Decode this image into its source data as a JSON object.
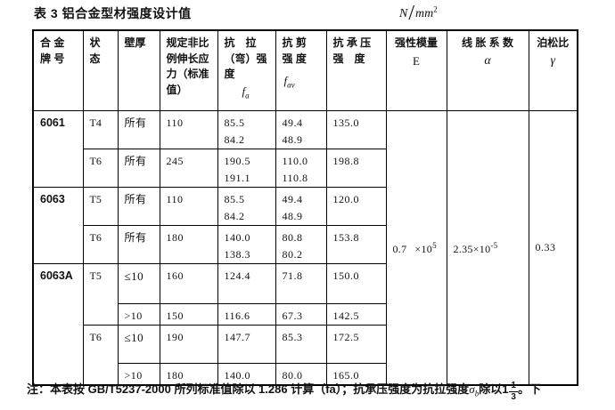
{
  "page": {
    "title": "表 3 铝合金型材强度设计值",
    "unit": {
      "numerator": "N",
      "denominator": "mm",
      "exponent": "2"
    }
  },
  "table": {
    "columns": [
      {
        "id": "alloy",
        "lines": [
          "合 金",
          "牌 号"
        ]
      },
      {
        "id": "temper",
        "lines": [
          "状",
          "态"
        ]
      },
      {
        "id": "thickness",
        "lines": [
          "壁厚"
        ]
      },
      {
        "id": "yield_strength",
        "lines": [
          "规定非比",
          "例伸长应",
          "力（标准",
          "值）"
        ]
      },
      {
        "id": "tensile",
        "lines": [
          "抗　拉",
          "（弯）强",
          "度"
        ],
        "symbol": "f",
        "symbol_sub": "a"
      },
      {
        "id": "shear",
        "lines": [
          "抗 剪",
          "强 度"
        ],
        "symbol": "f",
        "symbol_sub": "av"
      },
      {
        "id": "bearing",
        "lines": [
          "抗 承 压",
          "强　度"
        ]
      },
      {
        "id": "modulus",
        "lines": [
          "强性模量"
        ],
        "symbol": "E"
      },
      {
        "id": "expansion",
        "lines": [
          "线 胀 系 数"
        ],
        "symbol": "α"
      },
      {
        "id": "poisson",
        "lines": [
          "泊松比"
        ],
        "symbol": "γ"
      }
    ],
    "rows": [
      {
        "alloy": "6061",
        "alloy_span": 2,
        "temper": "T4",
        "thickness": "所有",
        "yield_strength": "110",
        "tensile": [
          "85.5",
          "84.2"
        ],
        "shear": [
          "49.4",
          "48.9"
        ],
        "bearing": "135.0"
      },
      {
        "temper": "T6",
        "thickness": "所有",
        "yield_strength": "245",
        "tensile": [
          "190.5",
          "191.1"
        ],
        "shear": [
          "110.0",
          "110.8"
        ],
        "bearing": "198.8"
      },
      {
        "alloy": "6063",
        "alloy_span": 2,
        "temper": "T5",
        "thickness": "所有",
        "yield_strength": "110",
        "tensile": [
          "85.5",
          "84.2"
        ],
        "shear": [
          "49.4",
          "48.9"
        ],
        "bearing": "120.0"
      },
      {
        "temper": "T6",
        "thickness": "所有",
        "yield_strength": "180",
        "tensile": [
          "140.0",
          "138.3"
        ],
        "shear": [
          "80.8",
          "80.2"
        ],
        "bearing": "153.8"
      },
      {
        "alloy": "6063A",
        "alloy_span": 4,
        "temper": "T5",
        "temper_span": 2,
        "thickness": "≤10",
        "yield_strength": "160",
        "tensile": [
          "124.4"
        ],
        "shear": [
          "71.8"
        ],
        "bearing": "150.0"
      },
      {
        "thickness": ">10",
        "yield_strength": "150",
        "tensile": [
          "116.6"
        ],
        "shear": [
          "67.3"
        ],
        "bearing": "142.5"
      },
      {
        "temper": "T6",
        "temper_span": 2,
        "thickness": "≤10",
        "yield_strength": "190",
        "tensile": [
          "147.7"
        ],
        "shear": [
          "85.3"
        ],
        "bearing": "172.5"
      },
      {
        "thickness": ">10",
        "yield_strength": "180",
        "tensile": [
          "140.0"
        ],
        "shear": [
          "80.0"
        ],
        "bearing": "165.0"
      }
    ],
    "merged_values": {
      "modulus": {
        "coefficient": "0.7",
        "multiplier": "×10",
        "exponent": "5"
      },
      "expansion": {
        "coefficient": "2.35",
        "multiplier": "×10",
        "exponent": "-5"
      },
      "poisson": "0.33"
    }
  },
  "note": {
    "part1": "注：本表按 GB/T5237-2000 所列标准值除以 1.286 计算（fa）；抗承压强度为抗拉强度",
    "sigma": "σ",
    "sigma_sub": "b",
    "part2": "除以1",
    "fraction_numerator": "1",
    "fraction_denominator": "3",
    "part3": "。下"
  }
}
